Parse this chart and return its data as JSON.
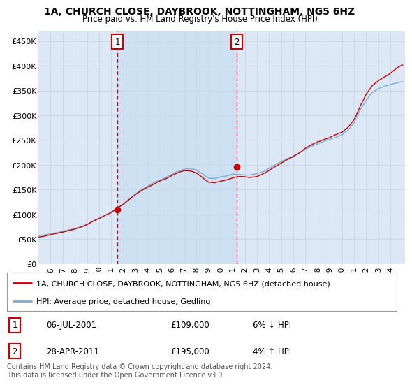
{
  "title": "1A, CHURCH CLOSE, DAYBROOK, NOTTINGHAM, NG5 6HZ",
  "subtitle": "Price paid vs. HM Land Registry's House Price Index (HPI)",
  "background_color": "#ffffff",
  "plot_bg_color": "#dce8f5",
  "grid_color": "#c8d8e8",
  "xlim_start": 1995.0,
  "xlim_end": 2025.2,
  "ylim_min": 0,
  "ylim_max": 470000,
  "yticks": [
    0,
    50000,
    100000,
    150000,
    200000,
    250000,
    300000,
    350000,
    400000,
    450000
  ],
  "ytick_labels": [
    "£0",
    "£50K",
    "£100K",
    "£150K",
    "£200K",
    "£250K",
    "£300K",
    "£350K",
    "£400K",
    "£450K"
  ],
  "xtick_years": [
    1996,
    1997,
    1998,
    1999,
    2000,
    2001,
    2002,
    2003,
    2004,
    2005,
    2006,
    2007,
    2008,
    2009,
    2010,
    2011,
    2012,
    2013,
    2014,
    2015,
    2016,
    2017,
    2018,
    2019,
    2020,
    2021,
    2022,
    2023,
    2024
  ],
  "sale1_x": 2001.5,
  "sale1_y": 109000,
  "sale1_label": "1",
  "sale1_date": "06-JUL-2001",
  "sale1_price": "£109,000",
  "sale1_hpi": "6% ↓ HPI",
  "sale2_x": 2011.33,
  "sale2_y": 195000,
  "sale2_label": "2",
  "sale2_date": "28-APR-2011",
  "sale2_price": "£195,000",
  "sale2_hpi": "4% ↑ HPI",
  "line1_color": "#cc0000",
  "line2_color": "#7aadd4",
  "shade_color": "#c5ddf0",
  "legend1_label": "1A, CHURCH CLOSE, DAYBROOK, NOTTINGHAM, NG5 6HZ (detached house)",
  "legend2_label": "HPI: Average price, detached house, Gedling",
  "footnote": "Contains HM Land Registry data © Crown copyright and database right 2024.\nThis data is licensed under the Open Government Licence v3.0."
}
